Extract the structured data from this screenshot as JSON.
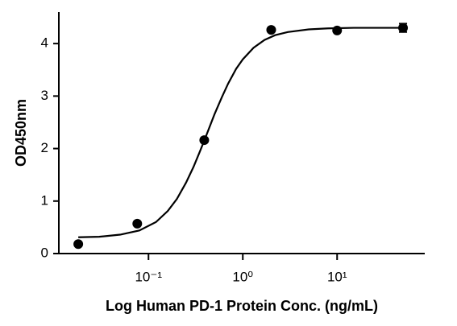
{
  "chart_data": {
    "type": "scatter",
    "x_label": "Log Human PD-1 Protein Conc. (ng/mL)",
    "y_label": "OD450nm",
    "x": [
      0.018,
      0.076,
      0.39,
      2,
      10,
      50
    ],
    "values": [
      0.18,
      0.57,
      2.16,
      4.26,
      4.25,
      4.3
    ],
    "errors": [
      0,
      0,
      0,
      0,
      0,
      0.08
    ],
    "color": "#000000",
    "fit": {
      "type": "line",
      "x": [
        0.018,
        0.03,
        0.05,
        0.08,
        0.12,
        0.16,
        0.2,
        0.25,
        0.3,
        0.35,
        0.4,
        0.5,
        0.6,
        0.7,
        0.85,
        1,
        1.3,
        1.7,
        2.2,
        3,
        5,
        8,
        15,
        50
      ],
      "values": [
        0.31,
        0.32,
        0.36,
        0.44,
        0.6,
        0.81,
        1.04,
        1.35,
        1.65,
        1.94,
        2.2,
        2.65,
        2.98,
        3.24,
        3.52,
        3.7,
        3.92,
        4.07,
        4.16,
        4.22,
        4.27,
        4.29,
        4.3,
        4.3
      ],
      "color": "#000000"
    },
    "x_log": true,
    "xlim": [
      0.0112,
      85
    ],
    "xticks": [
      {
        "value": 0.1,
        "label": "10⁻¹"
      },
      {
        "value": 1,
        "label": "10⁰"
      },
      {
        "value": 10,
        "label": "10¹"
      }
    ],
    "ylim": [
      0,
      4.6
    ],
    "yticks": [
      0,
      1,
      2,
      3,
      4
    ],
    "grid": false
  }
}
